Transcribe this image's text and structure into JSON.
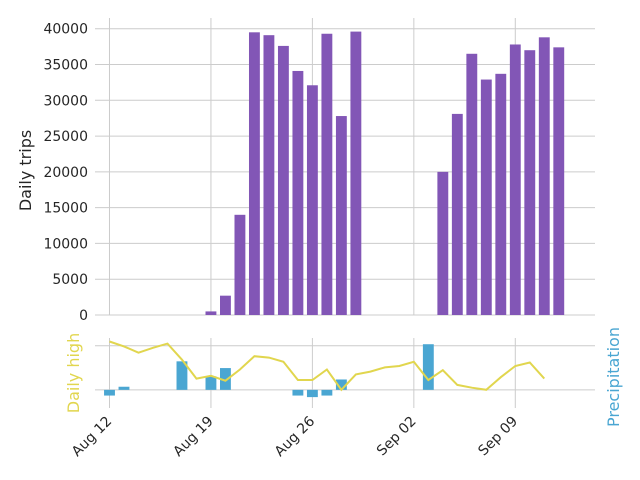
{
  "chart_data": [
    {
      "type": "bar",
      "ylabel": "Daily trips",
      "ylim": [
        0,
        41500
      ],
      "yticks": [
        0,
        5000,
        10000,
        15000,
        20000,
        25000,
        30000,
        35000,
        40000
      ],
      "xlim_days": [
        -1,
        33.5
      ],
      "bar_color": "#8256b6",
      "x_start_date": "Aug 12",
      "values": [
        0,
        0,
        0,
        0,
        0,
        0,
        0,
        500,
        2700,
        14000,
        39500,
        39100,
        37600,
        34100,
        32100,
        39300,
        27800,
        39600,
        0,
        0,
        0,
        0,
        0,
        20000,
        28100,
        36500,
        32900,
        33700,
        37800,
        37000,
        38800,
        37400
      ]
    },
    {
      "type": "bar+line",
      "left_ylabel": "Daily high",
      "right_ylabel": "Precipitation",
      "line_color": "#e1d64e",
      "bar_color": "#4aa6d2",
      "line_ylim": [
        0,
        100
      ],
      "bar_ylim": [
        -0.35,
        1.0
      ],
      "daily_high": [
        95,
        88,
        79,
        86,
        92,
        69,
        42,
        46,
        39,
        55,
        74,
        72,
        66,
        40,
        40,
        55,
        26,
        48,
        52,
        58,
        60,
        66,
        40,
        54,
        33,
        29,
        26,
        44,
        60,
        65,
        42
      ],
      "precipitation": [
        -0.11,
        0.06,
        0,
        0,
        0,
        0.55,
        0,
        0.26,
        0.42,
        0,
        0,
        0,
        0,
        -0.11,
        -0.14,
        -0.11,
        0.2,
        0,
        0,
        0,
        0,
        0,
        0.88,
        0,
        0,
        0,
        0,
        0,
        0,
        0,
        0
      ]
    }
  ],
  "x_axis": {
    "tick_labels": [
      "Aug 12",
      "Aug 19",
      "Aug 26",
      "Sep 02",
      "Sep 09"
    ],
    "tick_days": [
      0,
      7,
      14,
      21,
      28
    ]
  }
}
